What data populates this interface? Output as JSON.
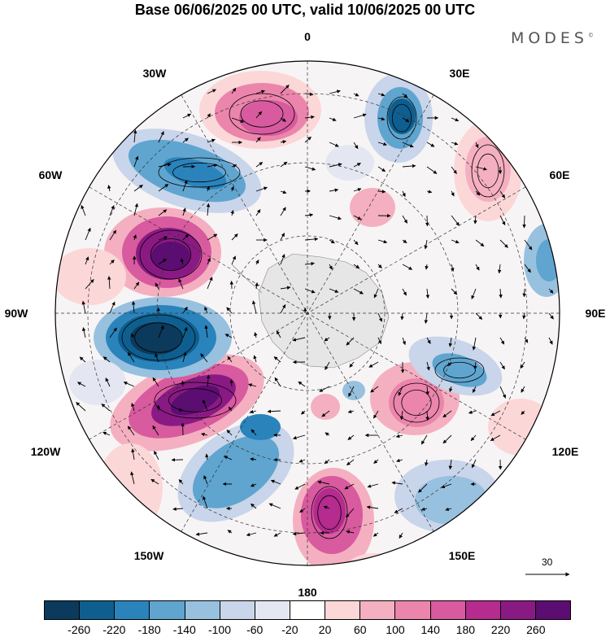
{
  "title": "Base 06/06/2025 00 UTC, valid 10/06/2025 00 UTC",
  "brand": "MODES",
  "brand_mark": "©",
  "longitude_labels": {
    "lon_0": "0",
    "lon_30e": "30E",
    "lon_60e": "60E",
    "lon_90e": "90E",
    "lon_120e": "120E",
    "lon_150e": "150E",
    "lon_180": "180",
    "lon_150w": "150W",
    "lon_120w": "120W",
    "lon_90w": "90W",
    "lon_60w": "60W",
    "lon_30w": "30W"
  },
  "vector_scale": {
    "label": "30"
  },
  "colorbar": {
    "colors": [
      "#0b3a5c",
      "#0e5f8f",
      "#2b83bb",
      "#5fa5cf",
      "#98c1df",
      "#c8d5ea",
      "#e4e6f2",
      "#ffffff",
      "#fbd7d8",
      "#f4b0c0",
      "#ec85ab",
      "#d85a9f",
      "#b52b8e",
      "#8a1a83",
      "#5c0d72"
    ],
    "tick_labels": [
      "-260",
      "-220",
      "-180",
      "-140",
      "-100",
      "-60",
      "-20",
      "20",
      "60",
      "100",
      "140",
      "180",
      "220",
      "260"
    ]
  }
}
